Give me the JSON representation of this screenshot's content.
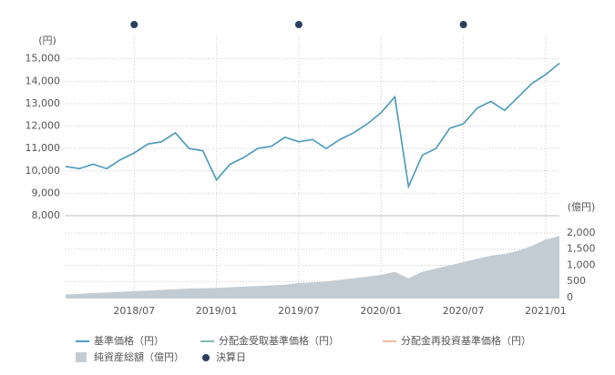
{
  "chart_data": {
    "type": "line",
    "y_label": "(円)",
    "y2_label": "(億円)",
    "x": [
      "2018/02",
      "2018/03",
      "2018/04",
      "2018/05",
      "2018/06",
      "2018/07",
      "2018/08",
      "2018/09",
      "2018/10",
      "2018/11",
      "2018/12",
      "2019/01",
      "2019/02",
      "2019/03",
      "2019/04",
      "2019/05",
      "2019/06",
      "2019/07",
      "2019/08",
      "2019/09",
      "2019/10",
      "2019/11",
      "2019/12",
      "2020/01",
      "2020/02",
      "2020/03",
      "2020/04",
      "2020/05",
      "2020/06",
      "2020/07",
      "2020/08",
      "2020/09",
      "2020/10",
      "2020/11",
      "2020/12",
      "2021/01",
      "2021/02"
    ],
    "xlim": [
      "2018/02",
      "2021/02"
    ],
    "xticks": [
      "2018/07",
      "2019/01",
      "2019/07",
      "2020/01",
      "2020/07",
      "2021/01"
    ],
    "series": [
      {
        "name": "基準価格（円）",
        "color": "#4a9cc2",
        "values": [
          10200,
          10100,
          10300,
          10100,
          10500,
          10800,
          11200,
          11300,
          11700,
          11000,
          10900,
          9600,
          10300,
          10600,
          11000,
          11100,
          11500,
          11300,
          11400,
          11000,
          11400,
          11700,
          12100,
          12600,
          13300,
          9300,
          10700,
          11000,
          11900,
          12100,
          12800,
          13100,
          12700,
          13300,
          13900,
          14300,
          14800
        ]
      },
      {
        "name": "分配金受取基準価格（円）",
        "color": "#7fb9b0",
        "values": [
          10200,
          10100,
          10300,
          10100,
          10500,
          10800,
          11200,
          11300,
          11700,
          11000,
          10900,
          9600,
          10300,
          10600,
          11000,
          11100,
          11500,
          11300,
          11400,
          11000,
          11400,
          11700,
          12100,
          12600,
          13300,
          9300,
          10700,
          11000,
          11900,
          12100,
          12800,
          13100,
          12700,
          13300,
          13900,
          14300,
          14800
        ]
      },
      {
        "name": "分配金再投資基準価格（円）",
        "color": "#f2b8a2",
        "values": [
          10200,
          10100,
          10300,
          10100,
          10500,
          10800,
          11200,
          11300,
          11700,
          11000,
          10900,
          9600,
          10300,
          10600,
          11000,
          11100,
          11500,
          11300,
          11400,
          11000,
          11400,
          11700,
          12100,
          12600,
          13300,
          9300,
          10700,
          11000,
          11900,
          12100,
          12800,
          13100,
          12700,
          13300,
          13900,
          14300,
          14800
        ]
      },
      {
        "name": "純資産総額（億円）",
        "color": "#c3ccd3",
        "axis": "y2",
        "kind": "area",
        "values": [
          100,
          120,
          140,
          160,
          180,
          200,
          220,
          240,
          260,
          280,
          290,
          300,
          320,
          340,
          360,
          380,
          400,
          450,
          470,
          500,
          550,
          600,
          650,
          700,
          800,
          600,
          800,
          900,
          1000,
          1100,
          1200,
          1300,
          1350,
          1450,
          1600,
          1800,
          1900
        ]
      }
    ],
    "ylim": [
      8000,
      16000
    ],
    "yticks": [
      {
        "value": 8000,
        "label": "8,000"
      },
      {
        "value": 9000,
        "label": "9,000"
      },
      {
        "value": 10000,
        "label": "10,000"
      },
      {
        "value": 11000,
        "label": "11,000"
      },
      {
        "value": 12000,
        "label": "12,000"
      },
      {
        "value": 13000,
        "label": "13,000"
      },
      {
        "value": 14000,
        "label": "14,000"
      },
      {
        "value": 15000,
        "label": "15,000"
      }
    ],
    "y2lim": [
      0,
      2450
    ],
    "y2ticks": [
      0,
      500,
      {
        "value": 1000,
        "label": "1,000"
      },
      {
        "value": 1500,
        "label": "1,500"
      },
      {
        "value": 2000,
        "label": "2,000"
      }
    ],
    "markers": {
      "name": "決算日",
      "color": "#2d3f5e",
      "x": [
        "2018/07",
        "2019/07",
        "2020/07"
      ]
    },
    "grid": true
  }
}
